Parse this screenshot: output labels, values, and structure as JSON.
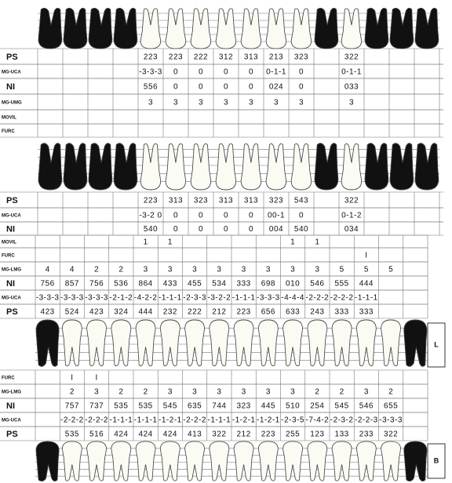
{
  "upper": {
    "rows": [
      {
        "label": "PS",
        "cells": [
          null,
          null,
          null,
          null,
          "223",
          "223",
          "222",
          "312",
          "313",
          "213",
          "323",
          null,
          "322",
          null,
          null,
          null
        ]
      },
      {
        "label": "MG-UCA",
        "cells": [
          null,
          null,
          null,
          null,
          "-3-3-3",
          "0",
          "0",
          "0",
          "0",
          "0-1-1",
          "0",
          null,
          "0-1-1",
          null,
          null,
          null
        ]
      },
      {
        "label": "NI",
        "cells": [
          null,
          null,
          null,
          null,
          "556",
          "0",
          "0",
          "0",
          "0",
          "024",
          "0",
          null,
          "033",
          null,
          null,
          null
        ]
      },
      {
        "label": "MG-UMG",
        "cells": [
          null,
          null,
          null,
          null,
          "3",
          "3",
          "3",
          "3",
          "3",
          "3",
          "3",
          null,
          "3",
          null,
          null,
          null
        ]
      },
      {
        "label": "MOVIL",
        "cells": [
          null,
          null,
          null,
          null,
          null,
          null,
          null,
          null,
          null,
          null,
          null,
          null,
          null,
          null,
          null,
          null
        ]
      },
      {
        "label": "FURC",
        "cells": [
          null,
          null,
          null,
          null,
          null,
          null,
          null,
          null,
          null,
          null,
          null,
          null,
          null,
          null,
          null,
          null
        ]
      },
      {
        "label": "PS",
        "cells": [
          null,
          null,
          null,
          null,
          "223",
          "313",
          "323",
          "313",
          "313",
          "323",
          "543",
          null,
          "322",
          null,
          null,
          null
        ]
      },
      {
        "label": "MG-UCA",
        "cells": [
          null,
          null,
          null,
          null,
          "-3-2 0",
          "0",
          "0",
          "0",
          "0",
          "00-1",
          "0",
          null,
          "0-1-2",
          null,
          null,
          null
        ]
      },
      {
        "label": "NI",
        "cells": [
          null,
          null,
          null,
          null,
          "540",
          "0",
          "0",
          "0",
          "0",
          "004",
          "540",
          null,
          "034",
          null,
          null,
          null
        ]
      }
    ]
  },
  "lower": {
    "rows": [
      {
        "label": "MOVIL",
        "cells": [
          null,
          null,
          null,
          null,
          "1",
          "1",
          null,
          null,
          null,
          null,
          "1",
          "1",
          null,
          null,
          null,
          null
        ]
      },
      {
        "label": "FURC",
        "cells": [
          null,
          null,
          null,
          null,
          null,
          null,
          null,
          null,
          null,
          null,
          null,
          null,
          null,
          "I",
          null,
          null
        ]
      },
      {
        "label": "MG-LMG",
        "cells": [
          "4",
          "4",
          "2",
          "2",
          "3",
          "3",
          "3",
          "3",
          "3",
          "3",
          "3",
          "3",
          "5",
          "5",
          "5",
          null
        ]
      },
      {
        "label": "NI",
        "cells": [
          "756",
          "857",
          "756",
          "536",
          "864",
          "433",
          "455",
          "534",
          "333",
          "698",
          "010",
          "546",
          "555",
          "444",
          null,
          null
        ]
      },
      {
        "label": "MG-UCA",
        "cells": [
          "-3-3-3",
          "-3-3-3",
          "-3-3-3",
          "-2-1-2",
          "-4-2-2",
          "-1-1-1",
          "-2-3-3",
          "-3-2-2",
          "-1-1-1",
          "-3-3-3",
          "-4-4-4",
          "-2-2-2",
          "-2-2-2",
          "-1-1-1",
          null,
          null
        ]
      },
      {
        "label": "PS",
        "cells": [
          "423",
          "524",
          "423",
          "324",
          "444",
          "232",
          "222",
          "212",
          "223",
          "656",
          "633",
          "243",
          "333",
          "333",
          null,
          null
        ]
      },
      {
        "label": "FURC",
        "cells": [
          null,
          "I",
          "I",
          null,
          null,
          null,
          null,
          null,
          null,
          null,
          null,
          null,
          null,
          null,
          null,
          null
        ]
      },
      {
        "label": "MG-LMG",
        "cells": [
          null,
          "2",
          "3",
          "2",
          "2",
          "3",
          "3",
          "3",
          "3",
          "3",
          "3",
          "2",
          "2",
          "3",
          "2",
          null
        ]
      },
      {
        "label": "NI",
        "cells": [
          null,
          "757",
          "737",
          "535",
          "535",
          "545",
          "635",
          "744",
          "323",
          "445",
          "510",
          "254",
          "545",
          "546",
          "655",
          null
        ]
      },
      {
        "label": "MG-UCA",
        "cells": [
          null,
          "-2-2-2",
          "-2-2-2",
          "-1-1-1",
          "-1-1-1",
          "-1-2-1",
          "-2-2-2",
          "-1-1-1",
          "-1-2-1",
          "-1-2-1",
          "-2-3-5",
          "-7-4-2",
          "-2-3-2",
          "-2-2-3",
          "-3-3-3",
          null
        ]
      },
      {
        "label": "PS",
        "cells": [
          null,
          "535",
          "516",
          "424",
          "424",
          "424",
          "413",
          "322",
          "212",
          "223",
          "255",
          "123",
          "133",
          "233",
          "322",
          null
        ]
      }
    ]
  },
  "tooth_labels": [
    "L",
    "B"
  ]
}
